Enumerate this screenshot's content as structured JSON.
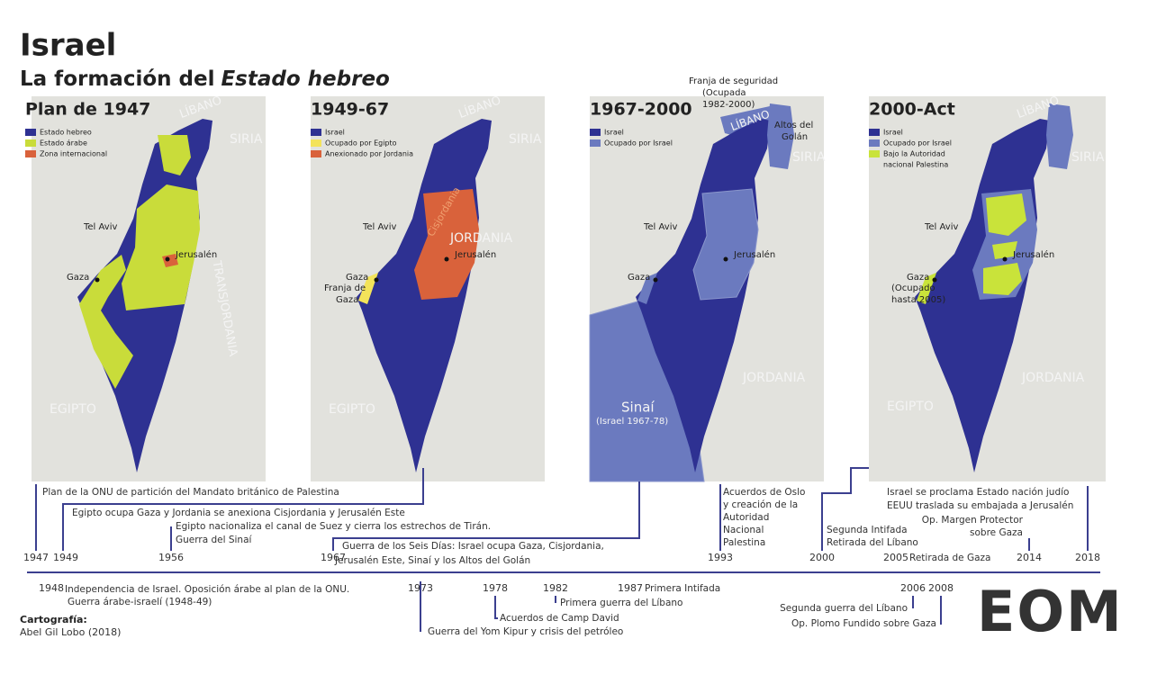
{
  "header": {
    "title": "Israel",
    "subtitle": "La formación del",
    "subtitle_emphasis": "Estado hebreo"
  },
  "maps": [
    {
      "title": "Plan de 1947",
      "legend": [
        {
          "label": "Estado hebreo",
          "color": "#2e3192"
        },
        {
          "label": "Estado árabe",
          "color": "#c9dc3a"
        },
        {
          "label": "Zona internacional",
          "color": "#d9623b"
        }
      ],
      "places": [
        "LÍBANO",
        "SIRIA",
        "TRANSJORDANIA",
        "Tel Aviv",
        "Jerusalén",
        "Gaza",
        "EGIPTO"
      ]
    },
    {
      "title": "1949-67",
      "legend": [
        {
          "label": "Israel",
          "color": "#2e3192"
        },
        {
          "label": "Ocupado por Egipto",
          "color": "#f3e35a"
        },
        {
          "label": "Anexionado por Jordania",
          "color": "#d9623b"
        }
      ],
      "places": [
        "LÍBANO",
        "SIRIA",
        "Cisjordania",
        "JORDANIA",
        "Tel Aviv",
        "Jerusalén",
        "Gaza",
        "Franja de",
        "Gaza",
        "EGIPTO"
      ]
    },
    {
      "title": "1967-2000",
      "legend": [
        {
          "label": "Israel",
          "color": "#2e3192"
        },
        {
          "label": "Ocupado por Israel",
          "color": "#6b7abf"
        }
      ],
      "places": [
        "Franja de seguridad",
        "(Ocupada",
        "1982-2000)",
        "LÍBANO",
        "Altos del",
        "Golán",
        "SIRIA",
        "Tel Aviv",
        "Jerusalén",
        "Gaza",
        "Sinaí",
        "(Israel 1967-78)",
        "JORDANIA"
      ]
    },
    {
      "title": "2000-Act",
      "legend": [
        {
          "label": "Israel",
          "color": "#2e3192"
        },
        {
          "label": "Ocupado por Israel",
          "color": "#6b7abf"
        },
        {
          "label": "Bajo la Autoridad",
          "color": "#c9e33a"
        },
        {
          "label": "nacional Palestina",
          "color": null
        }
      ],
      "places": [
        "LÍBANO",
        "SIRIA",
        "Tel Aviv",
        "Jerusalén",
        "Gaza",
        "(Ocupado",
        "hasta 2005)",
        "JORDANIA",
        "EGIPTO"
      ]
    }
  ],
  "timeline": {
    "years": [
      "1947",
      "1948",
      "1949",
      "1956",
      "1967",
      "1973",
      "1978",
      "1982",
      "1987",
      "1993",
      "2000",
      "2005",
      "2006",
      "2008",
      "2014",
      "2018"
    ],
    "events": [
      "Plan de la ONU de partición del Mandato británico de Palestina",
      "Egipto ocupa Gaza y Jordania se anexiona Cisjordania y Jerusalén Este",
      "Egipto nacionaliza el canal de Suez y cierra los estrechos de Tirán.",
      "Guerra del Sinaí",
      "Guerra de los Seis Días: Israel ocupa Gaza, Cisjordania,",
      "Jerusalén Este, Sinaí y los Altos del Golán",
      "Acuerdos de Oslo",
      "y creación de la",
      "Autoridad",
      "Nacional",
      "Palestina",
      "Segunda Intifada",
      "Retirada del Líbano",
      "Israel se proclama Estado nación judío",
      "EEUU traslada su embajada a Jerusalén",
      "Op. Margen Protector",
      "sobre Gaza",
      "Retirada de Gaza",
      "Independencia de Israel. Oposición árabe al plan de la ONU.",
      "Guerra árabe-israelí (1948-49)",
      "Guerra del Yom Kipur y crisis del petróleo",
      "Acuerdos de Camp David",
      "Primera guerra del Líbano",
      "Primera Intifada",
      "Segunda guerra del Líbano",
      "Op. Plomo Fundido sobre Gaza"
    ]
  },
  "credits": {
    "label": "Cartografía:",
    "author": "Abel Gil Lobo (2018)"
  },
  "logo": "EOM"
}
